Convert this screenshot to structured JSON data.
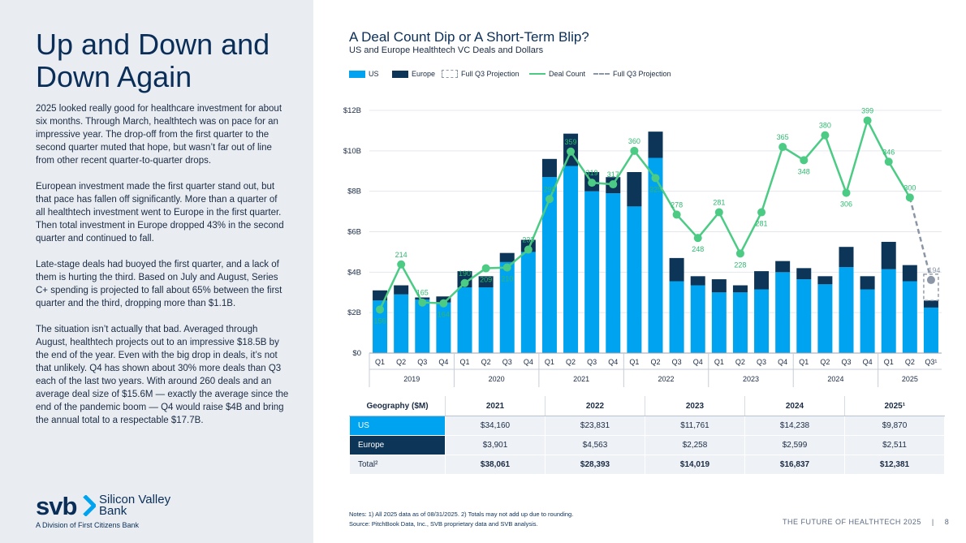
{
  "left": {
    "title": "Up and Down and Down Again",
    "paragraphs": [
      "2025 looked really good for healthcare investment for about six months. Through March, healthtech was on pace for an impressive year. The drop-off from the first quarter to the second quarter muted that hope, but wasn’t far out of line from other recent quarter-to-quarter drops.",
      "European investment made the first quarter stand out, but that pace has fallen off significantly. More than a quarter of all healthtech investment went to Europe in the first quarter. Then total investment in Europe dropped 43% in the second quarter and continued to fall.",
      "Late-stage deals had buoyed the first quarter, and a lack of them is hurting the third. Based on July and August, Series C+ spending is projected to fall about 65% between the first quarter and the third, dropping more than $1.1B.",
      "The situation isn’t actually that bad. Averaged through August, healthtech projects out to an impressive $18.5B by the end of the year. Even with the big drop in deals, it’s not that unlikely. Q4 has shown about 30% more deals than Q3 each of the last two years. With around 260 deals and an average deal size of $15.6M — exactly the average since the end of the pandemic boom — Q4 would raise $4B and bring the annual total to a respectable $17.7B."
    ],
    "brand": {
      "mark": "svb",
      "name": "Silicon Valley Bank",
      "sub": "A Division of First Citizens Bank"
    }
  },
  "chart": {
    "title": "A Deal Count Dip or A Short-Term Blip?",
    "subtitle": "US and Europe Healthtech VC Deals and Dollars"
  },
  "legend": {
    "us": "US",
    "europe": "Europe",
    "projection": "Full Q3 Projection",
    "deal_count": "Deal Count",
    "count_projection": "Full Q3 Projection"
  },
  "colors": {
    "us": "#00A3F0",
    "europe": "#0D3558",
    "deal_count": "#4CCB85",
    "projection": "#8A95A5"
  },
  "chart_data": {
    "type": "bar",
    "title": "A Deal Count Dip or A Short-Term Blip?",
    "subtitle": "US and Europe Healthtech VC Deals and Dollars",
    "ylim": [
      0,
      12
    ],
    "y_ticks": [
      "$0",
      "$2B",
      "$4B",
      "$6B",
      "$8B",
      "$10B",
      "$12B"
    ],
    "y_tick_values": [
      0,
      2,
      4,
      6,
      8,
      10,
      12
    ],
    "categories": [
      "Q1",
      "Q2",
      "Q3",
      "Q4",
      "Q1",
      "Q2",
      "Q3",
      "Q4",
      "Q1",
      "Q2",
      "Q3",
      "Q4",
      "Q1",
      "Q2",
      "Q3",
      "Q4",
      "Q1",
      "Q2",
      "Q3",
      "Q4",
      "Q1",
      "Q2",
      "Q3",
      "Q4",
      "Q1",
      "Q2",
      "Q3¹"
    ],
    "years": [
      "2019",
      "2020",
      "2021",
      "2022",
      "2023",
      "2024",
      "2025"
    ],
    "series": [
      {
        "name": "US",
        "unit": "$B",
        "values": [
          2.6,
          2.9,
          2.65,
          2.5,
          3.25,
          3.25,
          4.5,
          5.0,
          8.7,
          9.25,
          8.0,
          7.9,
          7.25,
          9.65,
          3.55,
          3.35,
          3.0,
          3.0,
          3.15,
          4.0,
          3.65,
          3.4,
          4.25,
          3.15,
          4.15,
          3.55,
          2.25
        ]
      },
      {
        "name": "Europe",
        "unit": "$B",
        "values": [
          0.5,
          0.45,
          0.1,
          0.3,
          0.8,
          0.55,
          0.45,
          0.6,
          0.9,
          1.6,
          0.95,
          0.8,
          1.7,
          1.3,
          1.15,
          0.45,
          0.65,
          0.35,
          0.9,
          0.55,
          0.55,
          0.4,
          1.0,
          0.65,
          1.35,
          0.8,
          0.35
        ]
      },
      {
        "name": "Deal Count",
        "values": [
          156,
          214,
          165,
          164,
          190,
          209,
          210,
          233,
          298,
          359,
          319,
          317,
          360,
          325,
          278,
          248,
          281,
          228,
          281,
          365,
          348,
          380,
          306,
          399,
          346,
          300,
          194
        ]
      }
    ],
    "projection": {
      "us_eu_top_q3_2025_B": 3.9,
      "deal_count_q3_2025": 194
    }
  },
  "table": {
    "headers": [
      "Geography ($M)",
      "2021",
      "2022",
      "2023",
      "2024",
      "2025¹"
    ],
    "rows": [
      {
        "label": "US",
        "values": [
          "$34,160",
          "$23,831",
          "$11,761",
          "$14,238",
          "$9,870"
        ]
      },
      {
        "label": "Europe",
        "values": [
          "$3,901",
          "$4,563",
          "$2,258",
          "$2,599",
          "$2,511"
        ]
      },
      {
        "label": "Total²",
        "values": [
          "$38,061",
          "$28,393",
          "$14,019",
          "$16,837",
          "$12,381"
        ]
      }
    ]
  },
  "notes": {
    "line1": "Notes: 1) All 2025 data as of 08/31/2025. 2) Totals may not add up due to rounding.",
    "line2": "Source: PitchBook Data, Inc., SVB proprietary data and SVB analysis."
  },
  "footer": {
    "text": "THE FUTURE OF HEALTHTECH 2025",
    "sep": "|",
    "page": "8"
  }
}
